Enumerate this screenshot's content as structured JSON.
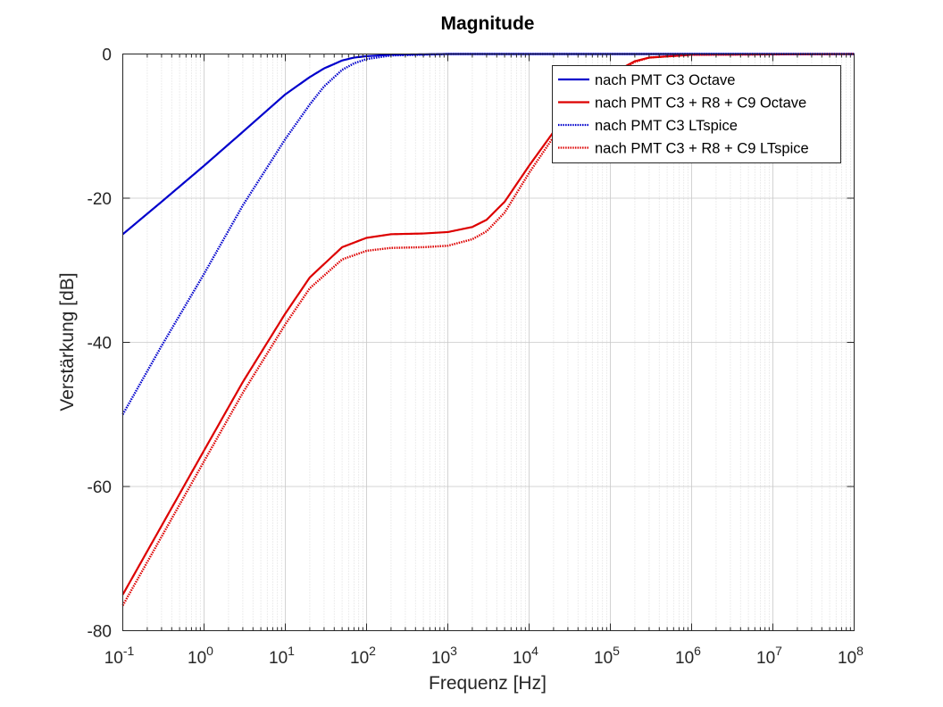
{
  "chart_data": {
    "type": "line",
    "title": "Magnitude",
    "xlabel": "Frequenz [Hz]",
    "ylabel": "Verstärkung [dB]",
    "xscale": "log",
    "xlim": [
      0.1,
      100000000
    ],
    "ylim": [
      -80,
      0
    ],
    "grid": "on (major and minor, dotted)",
    "legend_position": "top-right",
    "x_ticks": [
      {
        "base": "10",
        "exp": "-1"
      },
      {
        "base": "10",
        "exp": "0"
      },
      {
        "base": "10",
        "exp": "1"
      },
      {
        "base": "10",
        "exp": "2"
      },
      {
        "base": "10",
        "exp": "3"
      },
      {
        "base": "10",
        "exp": "4"
      },
      {
        "base": "10",
        "exp": "5"
      },
      {
        "base": "10",
        "exp": "6"
      },
      {
        "base": "10",
        "exp": "7"
      },
      {
        "base": "10",
        "exp": "8"
      }
    ],
    "y_ticks": [
      "0",
      "-20",
      "-40",
      "-60",
      "-80"
    ],
    "series": [
      {
        "name": "nach PMT C3 Octave",
        "color": "#0000cc",
        "style": "solid",
        "x": [
          0.1,
          0.3,
          1,
          3,
          10,
          20,
          30,
          50,
          70,
          100,
          200,
          1000,
          100000000
        ],
        "y": [
          -25,
          -20.5,
          -15.5,
          -10.8,
          -5.6,
          -3.2,
          -2,
          -0.9,
          -0.5,
          -0.3,
          -0.1,
          0,
          0
        ]
      },
      {
        "name": "nach PMT C3 + R8 + C9 Octave",
        "color": "#dd0000",
        "style": "solid",
        "x": [
          0.1,
          1,
          3,
          10,
          20,
          50,
          100,
          200,
          500,
          1000,
          2000,
          3000,
          5000,
          10000,
          20000,
          50000,
          100000,
          200000,
          300000,
          1000000,
          100000000
        ],
        "y": [
          -75,
          -55,
          -45.5,
          -36,
          -31,
          -26.8,
          -25.5,
          -25,
          -24.9,
          -24.7,
          -24,
          -23,
          -20.5,
          -15.5,
          -10.8,
          -5.5,
          -2.8,
          -1,
          -0.5,
          -0.1,
          0
        ]
      },
      {
        "name": "nach PMT C3 LTspice",
        "color": "#0000cc",
        "style": "dotted",
        "x": [
          0.1,
          0.3,
          1,
          3,
          10,
          20,
          30,
          50,
          70,
          100,
          200,
          1000,
          100000000
        ],
        "y": [
          -50,
          -40.5,
          -30.5,
          -21,
          -11.8,
          -7,
          -4.5,
          -2.2,
          -1.3,
          -0.7,
          -0.2,
          0,
          0
        ]
      },
      {
        "name": "nach PMT C3 + R8 + C9 LTspice",
        "color": "#dd0000",
        "style": "dotted",
        "x": [
          0.1,
          1,
          3,
          10,
          20,
          50,
          100,
          200,
          500,
          1000,
          2000,
          3000,
          5000,
          10000,
          20000,
          50000,
          100000,
          200000,
          300000,
          1000000,
          100000000
        ],
        "y": [
          -76.5,
          -56.5,
          -47,
          -37.5,
          -32.5,
          -28.5,
          -27.3,
          -26.9,
          -26.8,
          -26.6,
          -25.7,
          -24.6,
          -22,
          -16.5,
          -11.5,
          -5.9,
          -3,
          -1.1,
          -0.5,
          -0.1,
          0
        ]
      }
    ]
  }
}
